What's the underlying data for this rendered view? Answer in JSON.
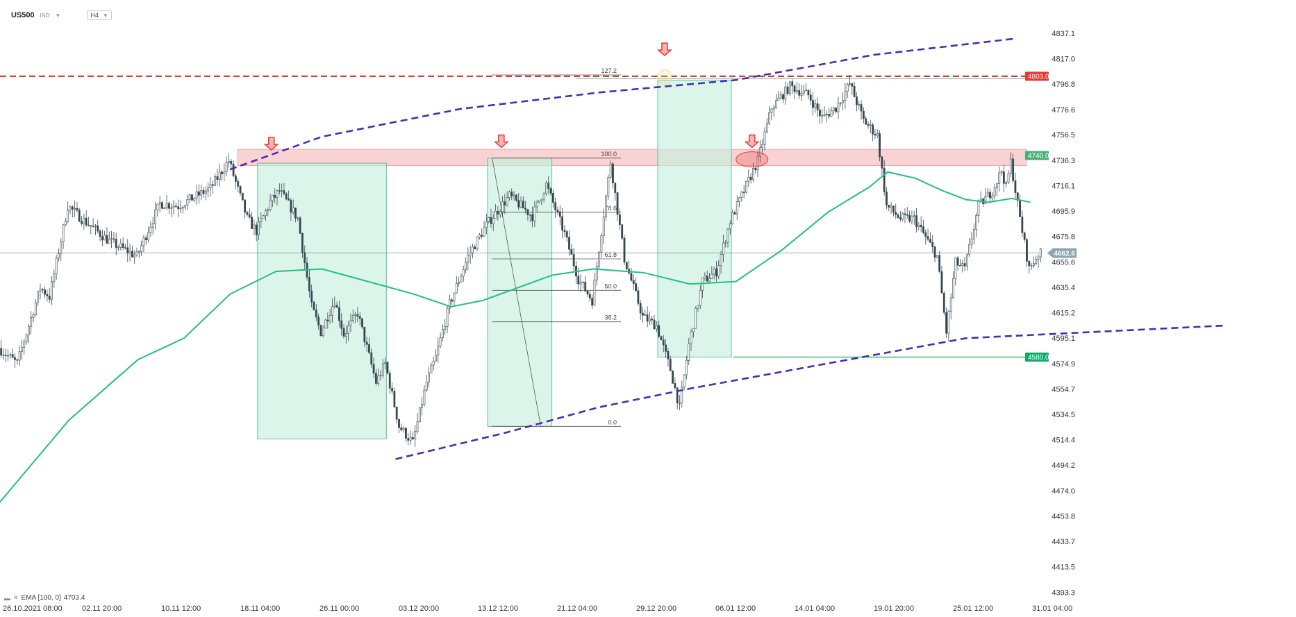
{
  "header": {
    "symbol": "US500",
    "market": "IND",
    "timeframe": "H4"
  },
  "legend": {
    "text": "EMA [100, 0]",
    "value": "4703.4"
  },
  "colors": {
    "candle": "#37474f",
    "ema": "#20c080",
    "channel": "#4a2bb5",
    "resistance_line": "#e53935",
    "zone_fill": "#f8c8c8",
    "box_fill": "#c8f0e0",
    "tag_red": "#e53935",
    "tag_green_muted": "#4caf7a",
    "tag_green": "#12a86a",
    "tag_current": "#90a4ae"
  },
  "chart_data": {
    "type": "candlestick",
    "title": "",
    "ylim": [
      4383.0,
      4847.0
    ],
    "y_ticks": [
      "4837.1",
      "4817.0",
      "4796.8",
      "4776.6",
      "4756.5",
      "4736.3",
      "4716.1",
      "4695.9",
      "4675.8",
      "4655.6",
      "4635.4",
      "4615.2",
      "4595.1",
      "4574.9",
      "4554.7",
      "4534.5",
      "4514.4",
      "4494.2",
      "4474.0",
      "4453.8",
      "4433.7",
      "4413.5",
      "4393.3"
    ],
    "x_ticks": [
      "26.10.2021  08:00",
      "02.11  20:00",
      "10.11  12:00",
      "18.11  04:00",
      "26.11  00:00",
      "03.12  20:00",
      "13.12  12:00",
      "21.12  04:00",
      "29.12  20:00",
      "06.01  12:00",
      "14.01  04:00",
      "19.01  20:00",
      "25.01  12:00",
      "31.01  04:00"
    ],
    "price_path": [
      [
        0,
        4587
      ],
      [
        8,
        4575
      ],
      [
        18,
        4635
      ],
      [
        22,
        4628
      ],
      [
        30,
        4700
      ],
      [
        36,
        4690
      ],
      [
        48,
        4672
      ],
      [
        60,
        4660
      ],
      [
        70,
        4702
      ],
      [
        78,
        4700
      ],
      [
        92,
        4714
      ],
      [
        100,
        4736
      ],
      [
        108,
        4690
      ],
      [
        112,
        4680
      ],
      [
        118,
        4703
      ],
      [
        122,
        4712
      ],
      [
        130,
        4690
      ],
      [
        136,
        4620
      ],
      [
        140,
        4600
      ],
      [
        146,
        4625
      ],
      [
        150,
        4598
      ],
      [
        156,
        4615
      ],
      [
        164,
        4560
      ],
      [
        168,
        4575
      ],
      [
        174,
        4525
      ],
      [
        180,
        4512
      ],
      [
        186,
        4560
      ],
      [
        190,
        4580
      ],
      [
        196,
        4622
      ],
      [
        204,
        4660
      ],
      [
        212,
        4685
      ],
      [
        222,
        4708
      ],
      [
        232,
        4692
      ],
      [
        238,
        4717
      ],
      [
        246,
        4678
      ],
      [
        252,
        4642
      ],
      [
        258,
        4625
      ],
      [
        266,
        4735
      ],
      [
        272,
        4658
      ],
      [
        280,
        4612
      ],
      [
        286,
        4605
      ],
      [
        292,
        4570
      ],
      [
        296,
        4540
      ],
      [
        300,
        4590
      ],
      [
        306,
        4640
      ],
      [
        312,
        4648
      ],
      [
        318,
        4688
      ],
      [
        324,
        4712
      ],
      [
        330,
        4736
      ],
      [
        336,
        4778
      ],
      [
        344,
        4795
      ],
      [
        352,
        4788
      ],
      [
        358,
        4770
      ],
      [
        364,
        4778
      ],
      [
        370,
        4797
      ],
      [
        376,
        4768
      ],
      [
        382,
        4756
      ],
      [
        386,
        4700
      ],
      [
        392,
        4690
      ],
      [
        398,
        4690
      ],
      [
        404,
        4672
      ],
      [
        408,
        4660
      ],
      [
        412,
        4600
      ],
      [
        416,
        4655
      ],
      [
        420,
        4650
      ],
      [
        426,
        4700
      ],
      [
        432,
        4712
      ],
      [
        436,
        4728
      ],
      [
        438,
        4715
      ],
      [
        440,
        4735
      ],
      [
        444,
        4690
      ],
      [
        448,
        4650
      ],
      [
        452,
        4662
      ]
    ],
    "candle_count": 453,
    "ema": {
      "name": "EMA [100, 0]",
      "path": [
        [
          0,
          4465
        ],
        [
          30,
          4530
        ],
        [
          60,
          4578
        ],
        [
          80,
          4595
        ],
        [
          100,
          4630
        ],
        [
          120,
          4648
        ],
        [
          140,
          4650
        ],
        [
          160,
          4640
        ],
        [
          180,
          4630
        ],
        [
          196,
          4620
        ],
        [
          210,
          4625
        ],
        [
          240,
          4645
        ],
        [
          258,
          4650
        ],
        [
          280,
          4647
        ],
        [
          300,
          4638
        ],
        [
          320,
          4640
        ],
        [
          340,
          4665
        ],
        [
          360,
          4695
        ],
        [
          378,
          4715
        ],
        [
          386,
          4727
        ],
        [
          398,
          4722
        ],
        [
          410,
          4712
        ],
        [
          420,
          4705
        ],
        [
          430,
          4703
        ],
        [
          440,
          4706
        ],
        [
          448,
          4703
        ]
      ]
    },
    "channel": {
      "upper": [
        [
          100,
          4729
        ],
        [
          140,
          4755
        ],
        [
          200,
          4777
        ],
        [
          260,
          4790
        ],
        [
          320,
          4800
        ],
        [
          380,
          4820
        ],
        [
          442,
          4833
        ]
      ],
      "lower": [
        [
          172,
          4499
        ],
        [
          220,
          4520
        ],
        [
          260,
          4540
        ],
        [
          300,
          4555
        ],
        [
          360,
          4575
        ],
        [
          420,
          4595
        ],
        [
          532,
          4605
        ]
      ]
    },
    "levels": [
      {
        "value": "4803.0",
        "color": "#e53935",
        "style": "dashed"
      },
      {
        "value": "4740.0",
        "color": "#4caf7a",
        "style": "zone",
        "zone_low": 4732,
        "zone_high": 4745
      },
      {
        "value": "4580.0",
        "color": "#12a86a",
        "style": "solid"
      },
      {
        "value": "4662.6",
        "color": "#90a4ae",
        "style": "current"
      }
    ],
    "measure_boxes": [
      {
        "x0": 112,
        "x1": 168,
        "top": 4734,
        "bottom": 4515
      },
      {
        "x0": 212,
        "x1": 240,
        "top": 4738,
        "bottom": 4525
      },
      {
        "x0": 286,
        "x1": 318,
        "top": 4800,
        "bottom": 4580
      }
    ],
    "fibonacci": {
      "x0": 214,
      "x1": 270,
      "levels": [
        {
          "label": "127.2",
          "value": 4804
        },
        {
          "label": "100.0",
          "value": 4738
        },
        {
          "label": "78.6",
          "value": 4695
        },
        {
          "label": "61.8",
          "value": 4658
        },
        {
          "label": "50.0",
          "value": 4633
        },
        {
          "label": "38.2",
          "value": 4608
        },
        {
          "label": "0.0",
          "value": 4525
        }
      ]
    },
    "arrows_at": [
      [
        118,
        4740
      ],
      [
        218,
        4742
      ],
      [
        289,
        4815
      ],
      [
        327,
        4742
      ]
    ],
    "ellipses": [
      {
        "x": 289,
        "value": 4802,
        "color": "#f0e090"
      },
      {
        "x": 327,
        "value": 4737,
        "color": "#e53935"
      }
    ]
  }
}
